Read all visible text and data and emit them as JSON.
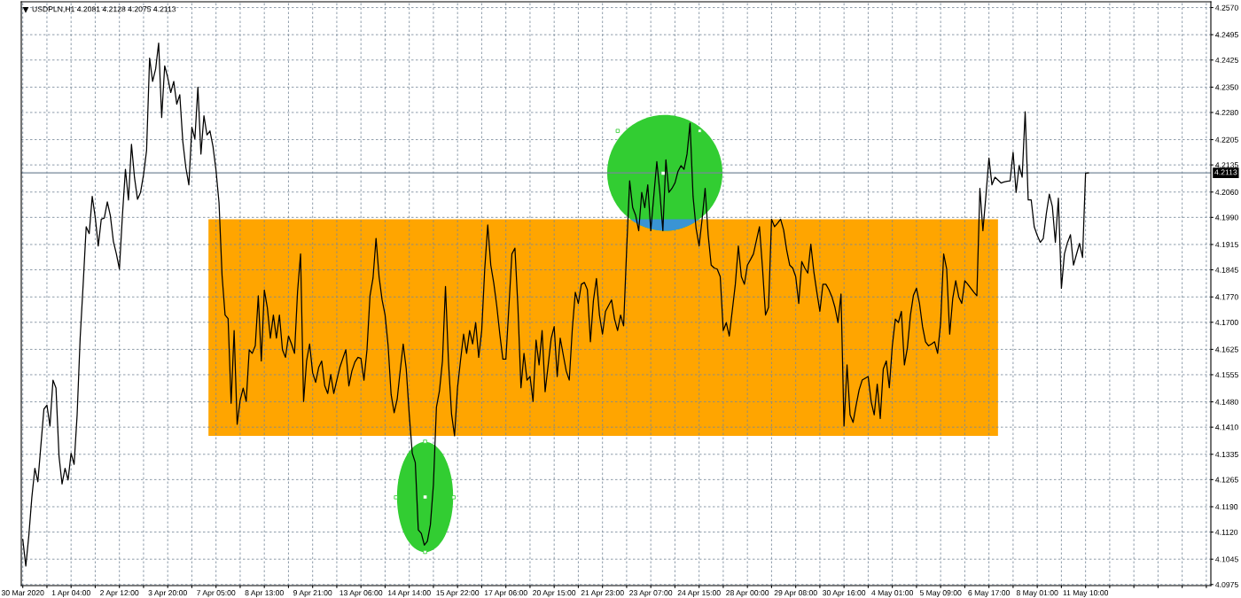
{
  "chart_data": {
    "type": "line",
    "title": "USDPLN,H1 4.2081 4.2128 4.2075 4.2113",
    "categories": [
      "30 Mar 2020",
      null,
      null,
      null,
      null,
      null,
      null,
      null,
      null,
      null,
      null,
      null,
      null,
      null,
      null,
      null,
      "1 Apr 04:00",
      null,
      null,
      null,
      null,
      null,
      null,
      null,
      null,
      null,
      null,
      null,
      null,
      null,
      null,
      null,
      "2 Apr 12:00",
      null,
      null,
      null,
      null,
      null,
      null,
      null,
      null,
      null,
      null,
      null,
      null,
      null,
      null,
      null,
      "3 Apr 20:00",
      null,
      null,
      null,
      null,
      null,
      null,
      null,
      null,
      null,
      null,
      null,
      null,
      null,
      null,
      null,
      "7 Apr 05:00",
      null,
      null,
      null,
      null,
      null,
      null,
      null,
      null,
      null,
      null,
      null,
      null,
      null,
      null,
      null,
      "8 Apr 13:00",
      null,
      null,
      null,
      null,
      null,
      null,
      null,
      null,
      null,
      null,
      null,
      null,
      null,
      null,
      null,
      "9 Apr 21:00",
      null,
      null,
      null,
      null,
      null,
      null,
      null,
      null,
      null,
      null,
      null,
      null,
      null,
      null,
      null,
      "13 Apr 06:00",
      null,
      null,
      null,
      null,
      null,
      null,
      null,
      null,
      null,
      null,
      null,
      null,
      null,
      null,
      null,
      "14 Apr 14:00",
      null,
      null,
      null,
      null,
      null,
      null,
      null,
      null,
      null,
      null,
      null,
      null,
      null,
      null,
      null,
      "15 Apr 22:00",
      null,
      null,
      null,
      null,
      null,
      null,
      null,
      null,
      null,
      null,
      null,
      null,
      null,
      null,
      null,
      "17 Apr 06:00",
      null,
      null,
      null,
      null,
      null,
      null,
      null,
      null,
      null,
      null,
      null,
      null,
      null,
      null,
      null,
      "20 Apr 15:00",
      null,
      null,
      null,
      null,
      null,
      null,
      null,
      null,
      null,
      null,
      null,
      null,
      null,
      null,
      null,
      "21 Apr 23:00",
      null,
      null,
      null,
      null,
      null,
      null,
      null,
      null,
      null,
      null,
      null,
      null,
      null,
      null,
      null,
      "23 Apr 07:00",
      null,
      null,
      null,
      null,
      null,
      null,
      null,
      null,
      null,
      null,
      null,
      null,
      null,
      null,
      null,
      "24 Apr 15:00",
      null,
      null,
      null,
      null,
      null,
      null,
      null,
      null,
      null,
      null,
      null,
      null,
      null,
      null,
      null,
      "28 Apr 00:00",
      null,
      null,
      null,
      null,
      null,
      null,
      null,
      null,
      null,
      null,
      null,
      null,
      null,
      null,
      null,
      "29 Apr 08:00",
      null,
      null,
      null,
      null,
      null,
      null,
      null,
      null,
      null,
      null,
      null,
      null,
      null,
      null,
      null,
      "30 Apr 16:00",
      null,
      null,
      null,
      null,
      null,
      null,
      null,
      null,
      null,
      null,
      null,
      null,
      null,
      null,
      null,
      "4 May 01:00",
      null,
      null,
      null,
      null,
      null,
      null,
      null,
      null,
      null,
      null,
      null,
      null,
      null,
      null,
      null,
      "5 May 09:00",
      null,
      null,
      null,
      null,
      null,
      null,
      null,
      null,
      null,
      null,
      null,
      null,
      null,
      null,
      null,
      "6 May 17:00",
      null,
      null,
      null,
      null,
      null,
      null,
      null,
      null,
      null,
      null,
      null,
      null,
      null,
      null,
      null,
      "8 May 01:00",
      null,
      null,
      null,
      null,
      null,
      null,
      null,
      null,
      null,
      null,
      null,
      null,
      null,
      null,
      null,
      "11 May 10:00",
      null,
      null,
      null,
      null,
      null,
      null,
      null,
      null,
      null,
      null,
      null,
      null,
      null,
      null,
      null,
      null,
      null,
      null,
      null,
      null,
      null,
      null,
      null,
      null,
      null,
      null,
      null,
      null,
      null,
      null,
      null,
      null,
      null,
      null,
      null,
      null,
      null,
      null,
      null,
      null,
      null
    ],
    "series": [
      {
        "color": "#000000",
        "values": [
          4.11,
          4.1026,
          4.111,
          4.1216,
          4.1296,
          4.1259,
          4.136,
          4.146,
          4.1471,
          4.1413,
          4.154,
          4.1518,
          4.133,
          4.1253,
          4.1296,
          4.1264,
          4.1338,
          4.1307,
          4.1444,
          4.1656,
          4.1805,
          4.1964,
          4.1945,
          4.2048,
          4.199,
          4.1911,
          4.1985,
          4.1988,
          4.2033,
          4.1995,
          4.1924,
          4.1889,
          4.1847,
          4.1995,
          4.2123,
          4.2038,
          4.2192,
          4.21,
          4.204,
          4.2059,
          4.2108,
          4.2175,
          4.243,
          4.2366,
          4.24,
          4.2472,
          4.2266,
          4.2409,
          4.2377,
          4.2335,
          4.2366,
          4.2303,
          4.2329,
          4.22,
          4.2128,
          4.208,
          4.2239,
          4.2207,
          4.235,
          4.2165,
          4.2271,
          4.2218,
          4.2229,
          4.2186,
          4.212,
          4.203,
          4.183,
          4.172,
          4.171,
          4.1476,
          4.1677,
          4.1418,
          4.1485,
          4.1518,
          4.1481,
          4.1624,
          4.1614,
          4.1635,
          4.1773,
          4.1593,
          4.1789,
          4.174,
          4.1656,
          4.172,
          4.1656,
          4.172,
          4.1624,
          4.1603,
          4.1662,
          4.164,
          4.1614,
          4.1784,
          4.1889,
          4.1481,
          4.1593,
          4.164,
          4.156,
          4.1534,
          4.1575,
          4.1593,
          4.1525,
          4.1503,
          4.1556,
          4.1503,
          4.154,
          4.1575,
          4.16,
          4.1624,
          4.1524,
          4.1565,
          4.159,
          4.1603,
          4.16,
          4.154,
          4.1624,
          4.1773,
          4.1822,
          4.1932,
          4.1826,
          4.1762,
          4.172,
          4.1635,
          4.15,
          4.145,
          4.1487,
          4.1566,
          4.164,
          4.1571,
          4.1445,
          4.1338,
          4.1312,
          4.1126,
          4.1116,
          4.1084,
          4.1095,
          4.114,
          4.125,
          4.1465,
          4.151,
          4.1593,
          4.1799,
          4.159,
          4.1447,
          4.1386,
          4.152,
          4.1596,
          4.1667,
          4.1614,
          4.1677,
          4.164,
          4.1699,
          4.1603,
          4.1677,
          4.1847,
          4.1969,
          4.1858,
          4.1808,
          4.1744,
          4.1667,
          4.1598,
          4.1598,
          4.1741,
          4.1889,
          4.1905,
          4.1741,
          4.1519,
          4.1614,
          4.154,
          4.155,
          4.1481,
          4.1651,
          4.1582,
          4.1677,
          4.1508,
          4.158,
          4.1655,
          4.1688,
          4.155,
          4.1656,
          4.161,
          4.1565,
          4.154,
          4.168,
          4.1783,
          4.1752,
          4.1805,
          4.181,
          4.179,
          4.1646,
          4.176,
          4.1821,
          4.172,
          4.1667,
          4.173,
          4.1746,
          4.1762,
          4.1709,
          4.1677,
          4.172,
          4.169,
          4.19,
          4.2091,
          4.2017,
          4.1995,
          4.1953,
          4.2059,
          4.2017,
          4.208,
          4.1953,
          4.205,
          4.2144,
          4.2059,
          4.1953,
          4.2149,
          4.2059,
          4.207,
          4.2085,
          4.2117,
          4.2133,
          4.2123,
          4.2165,
          4.225,
          4.2048,
          4.196,
          4.1911,
          4.1985,
          4.207,
          4.1942,
          4.1858,
          4.185,
          4.1847,
          4.1826,
          4.1677,
          4.1699,
          4.1662,
          4.1733,
          4.1805,
          4.1911,
          4.1826,
          4.1805,
          4.1858,
          4.1873,
          4.1889,
          4.1927,
          4.1964,
          4.185,
          4.172,
          4.1741,
          4.1985,
          4.1964,
          4.1974,
          4.1985,
          4.1955,
          4.19,
          4.1858,
          4.185,
          4.1826,
          4.1752,
          4.1868,
          4.185,
          4.1836,
          4.1916,
          4.184,
          4.1783,
          4.173,
          4.1805,
          4.1805,
          4.179,
          4.177,
          4.1741,
          4.1699,
          4.1778,
          4.1413,
          4.1582,
          4.1444,
          4.1423,
          4.147,
          4.1513,
          4.154,
          4.1545,
          4.155,
          4.148,
          4.1444,
          4.1529,
          4.1434,
          4.1571,
          4.1593,
          4.1519,
          4.1635,
          4.1709,
          4.1699,
          4.173,
          4.1582,
          4.163,
          4.172,
          4.1775,
          4.1794,
          4.1752,
          4.1688,
          4.1646,
          4.1635,
          4.164,
          4.1646,
          4.1614,
          4.1699,
          4.1889,
          4.1847,
          4.1667,
          4.1765,
          4.1815,
          4.177,
          4.1752,
          4.1815,
          4.1805,
          4.1794,
          4.1783,
          4.1773,
          4.207,
          4.1953,
          4.205,
          4.2154,
          4.208,
          4.2101,
          4.2093,
          4.2085,
          4.2088,
          4.209,
          4.2091,
          4.217,
          4.2059,
          4.2133,
          4.2101,
          4.2282,
          4.2038,
          4.2038,
          4.1964,
          4.194,
          4.1921,
          4.1932,
          4.2,
          4.2054,
          4.202,
          4.1921,
          4.2043,
          4.1794,
          4.1889,
          4.192,
          4.1942,
          4.1858,
          4.1888,
          4.1918,
          4.1879,
          4.2112,
          4.2113,
          null,
          null,
          null,
          null,
          null,
          null,
          null,
          null,
          null,
          null,
          null,
          null,
          null,
          null,
          null,
          null,
          null,
          null,
          null,
          null,
          null,
          null,
          null,
          null,
          null,
          null,
          null,
          null,
          null,
          null,
          null,
          null,
          null,
          null,
          null,
          null,
          null,
          null,
          null,
          null
        ]
      }
    ],
    "ylim": [
      4.0972,
      4.2586
    ],
    "yticks": [
      4.0975,
      4.1045,
      {
        "value": 4.112,
        "label": "4.1120"
      },
      {
        "value": 4.119,
        "label": "4.1190"
      },
      4.1265,
      4.1335,
      {
        "value": 4.141,
        "label": "4.1410"
      },
      {
        "value": 4.148,
        "label": "4.1480"
      },
      4.1555,
      4.1625,
      {
        "value": 4.17,
        "label": "4.1700"
      },
      {
        "value": 4.177,
        "label": "4.1770"
      },
      4.1845,
      4.1915,
      {
        "value": 4.199,
        "label": "4.1990"
      },
      {
        "value": 4.206,
        "label": "4.2060"
      },
      4.2135,
      4.2205,
      {
        "value": 4.228,
        "label": "4.2280"
      },
      {
        "value": 4.235,
        "label": "4.2350"
      },
      4.2425,
      4.2495,
      {
        "value": 4.257,
        "label": "4.2570"
      }
    ],
    "grid": true,
    "ref_lines": [
      {
        "axis": "y",
        "value": 4.2113,
        "label": "4.2113",
        "color": "#778899"
      }
    ]
  }
}
